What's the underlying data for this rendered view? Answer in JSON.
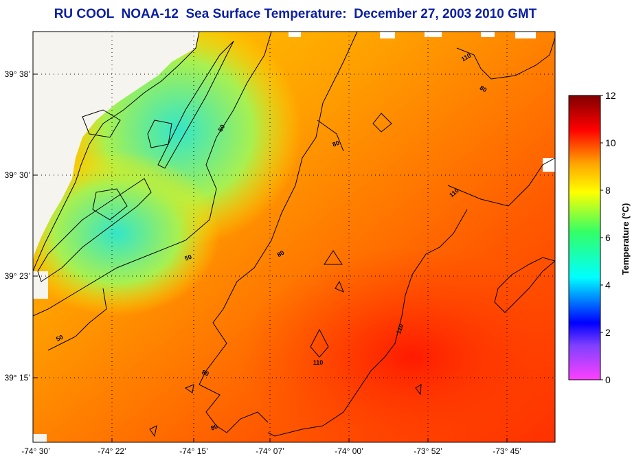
{
  "title": "RU COOL  NOAA-12  Sea Surface Temperature:  December 27, 2003 2010 GMT",
  "map": {
    "lat_labels": [
      "39° 38’",
      "39° 30’",
      "39° 23’",
      "39° 15’"
    ],
    "lon_labels": [
      "-74° 30’",
      "-74° 22’",
      "-74° 15’",
      "-74° 07’",
      "-74° 00’",
      "-73° 52’",
      "-73° 45’"
    ],
    "contour_labels": [
      "50",
      "50",
      "50",
      "80",
      "80",
      "80",
      "80",
      "80",
      "110",
      "110",
      "110",
      "110"
    ]
  },
  "colorbar": {
    "title": "Temperature (°C)",
    "ticks": [
      "12",
      "10",
      "8",
      "6",
      "4",
      "2",
      "0"
    ],
    "range": [
      0,
      12
    ],
    "stops": [
      "#ff40ff",
      "#0000ff",
      "#00ffff",
      "#33ff66",
      "#ffff00",
      "#ffa500",
      "#ff0000",
      "#800000"
    ]
  }
}
